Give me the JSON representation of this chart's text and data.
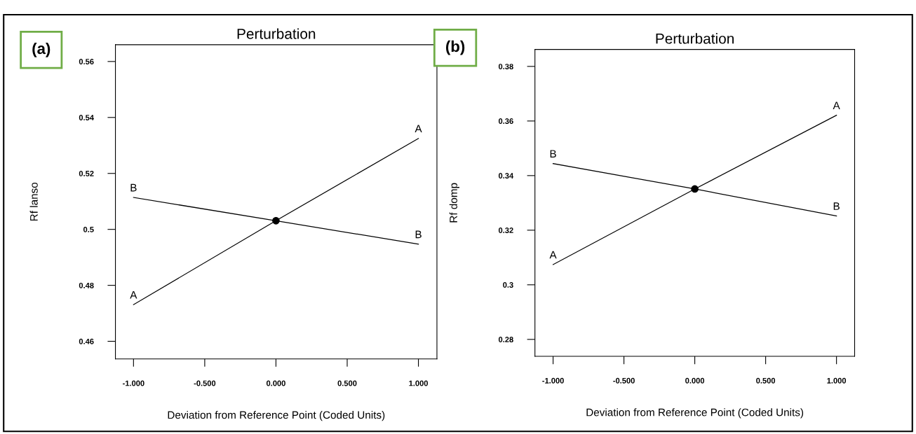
{
  "chart_data": [
    {
      "type": "line",
      "title": "Perturbation",
      "xlabel": "Deviation from Reference Point (Coded Units)",
      "ylabel": "Rf lanso",
      "annotations": [
        "(a)"
      ],
      "x": [
        -1,
        0,
        1
      ],
      "series": [
        {
          "name": "A",
          "color": "#000000",
          "values": [
            0.4731,
            0.5031,
            0.5325
          ]
        },
        {
          "name": "B",
          "color": "#000000",
          "values": [
            0.5114,
            0.5031,
            0.4947
          ]
        },
        {
          "type": "scatter",
          "color": "#000000",
          "marker": "circle",
          "x": [
            0
          ],
          "values": [
            0.5031
          ]
        }
      ],
      "xlim": [
        -1.127,
        1.13
      ],
      "ylim": [
        0.4537,
        0.566
      ],
      "xticks": [
        {
          "value": -1,
          "label": "-1.000"
        },
        {
          "value": -0.5,
          "label": "-0.500"
        },
        {
          "value": 0,
          "label": "0.000"
        },
        {
          "value": 0.5,
          "label": "0.500"
        },
        {
          "value": 1,
          "label": "1.000"
        }
      ],
      "yticks": [
        0.46,
        0.48,
        0.5,
        0.52,
        0.54,
        0.56
      ],
      "grid": false,
      "legend": false,
      "marker": "none"
    },
    {
      "type": "line",
      "title": "Perturbation",
      "xlabel": "Deviation from Reference Point (Coded Units)",
      "ylabel": "Rf domp",
      "annotations": [
        "(b)"
      ],
      "x": [
        -1,
        0,
        1
      ],
      "series": [
        {
          "name": "A",
          "color": "#000000",
          "values": [
            0.3074,
            0.3351,
            0.3621
          ]
        },
        {
          "name": "B",
          "color": "#000000",
          "values": [
            0.3444,
            0.3351,
            0.3252
          ]
        },
        {
          "type": "scatter",
          "color": "#000000",
          "marker": "circle",
          "x": [
            0
          ],
          "values": [
            0.3351
          ]
        }
      ],
      "xlim": [
        -1.128,
        1.128
      ],
      "ylim": [
        0.2738,
        0.3862
      ],
      "xticks": [
        {
          "value": -1,
          "label": "-1.000"
        },
        {
          "value": -0.5,
          "label": "-0.500"
        },
        {
          "value": 0,
          "label": "0.000"
        },
        {
          "value": 0.5,
          "label": "0.500"
        },
        {
          "value": 1,
          "label": "1.000"
        }
      ],
      "yticks": [
        0.28,
        0.3,
        0.32,
        0.34,
        0.36,
        0.38
      ],
      "grid": false,
      "legend": false,
      "marker": "none"
    }
  ]
}
